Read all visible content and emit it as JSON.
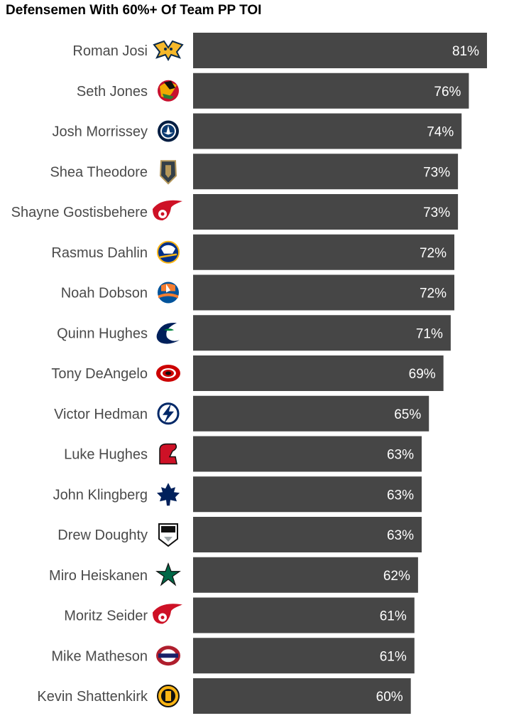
{
  "chart_data": {
    "type": "bar",
    "orientation": "horizontal",
    "title": "Defensemen With 60%+ Of Team PP TOI",
    "xlabel": "",
    "ylabel": "",
    "xlim": [
      0,
      81
    ],
    "grid": false,
    "legend": "none",
    "bar_color": "#464646",
    "value_label_color": "#ffffff",
    "category_label_color": "#4a4a4a",
    "categories": [
      "Roman Josi",
      "Seth Jones",
      "Josh Morrissey",
      "Shea Theodore",
      "Shayne Gostisbehere",
      "Rasmus Dahlin",
      "Noah Dobson",
      "Quinn Hughes",
      "Tony DeAngelo",
      "Victor Hedman",
      "Luke Hughes",
      "John Klingberg",
      "Drew Doughty",
      "Miro Heiskanen",
      "Moritz Seider",
      "Mike Matheson",
      "Kevin Shattenkirk"
    ],
    "values": [
      81,
      76,
      74,
      73,
      73,
      72,
      72,
      71,
      69,
      65,
      63,
      63,
      63,
      62,
      61,
      61,
      60
    ],
    "value_labels": [
      "81%",
      "76%",
      "74%",
      "73%",
      "73%",
      "72%",
      "72%",
      "71%",
      "69%",
      "65%",
      "63%",
      "63%",
      "63%",
      "62%",
      "61%",
      "61%",
      "60%"
    ],
    "team_logos": [
      "predators-logo-icon",
      "blackhawks-logo-icon",
      "jets-logo-icon",
      "golden-knights-logo-icon",
      "red-wings-logo-icon",
      "sabres-logo-icon",
      "islanders-logo-icon",
      "canucks-logo-icon",
      "hurricanes-logo-icon",
      "lightning-logo-icon",
      "devils-logo-icon",
      "maple-leafs-logo-icon",
      "kings-logo-icon",
      "stars-logo-icon",
      "red-wings-logo-icon",
      "canadiens-logo-icon",
      "bruins-logo-icon"
    ]
  }
}
